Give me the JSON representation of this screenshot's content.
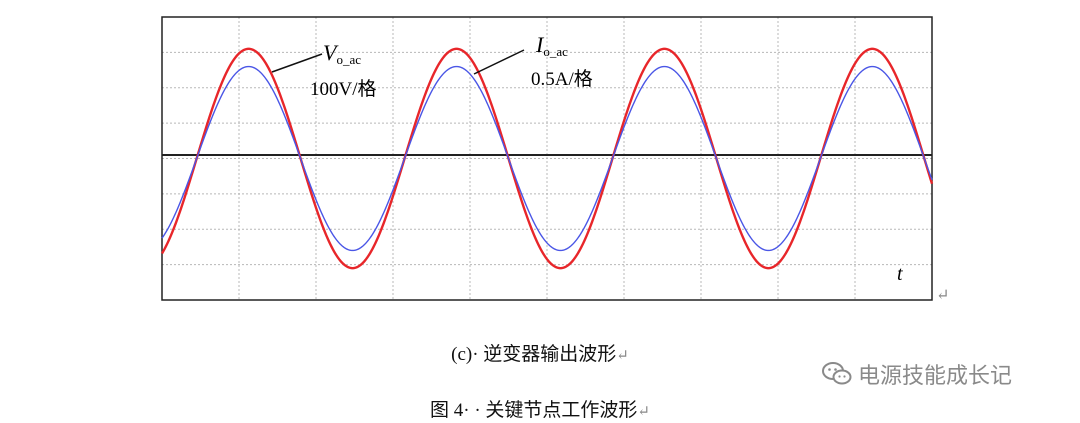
{
  "chart_data": {
    "type": "line",
    "x_unit": "t",
    "divisions_x": 10,
    "divisions_y": 8,
    "series": [
      {
        "name": "V_o_ac",
        "label_main": "V",
        "label_sub": "o_ac",
        "scale": "100V/格",
        "color": "#e8262a",
        "amplitude_div": 3.1,
        "phase_div": 0.45,
        "period_div": 2.7
      },
      {
        "name": "I_o_ac",
        "label_main": "I",
        "label_sub": "o_ac",
        "scale": "0.5A/格",
        "color": "#4a56e6",
        "amplitude_div": 2.6,
        "phase_div": 0.45,
        "period_div": 2.7
      }
    ],
    "zero_line_div": 4
  },
  "caption_sub": "(c)· 逆变器输出波形",
  "caption_fig": "图 4· · 关键节点工作波形",
  "return_mark": "↵",
  "watermark": "电源技能成长记"
}
